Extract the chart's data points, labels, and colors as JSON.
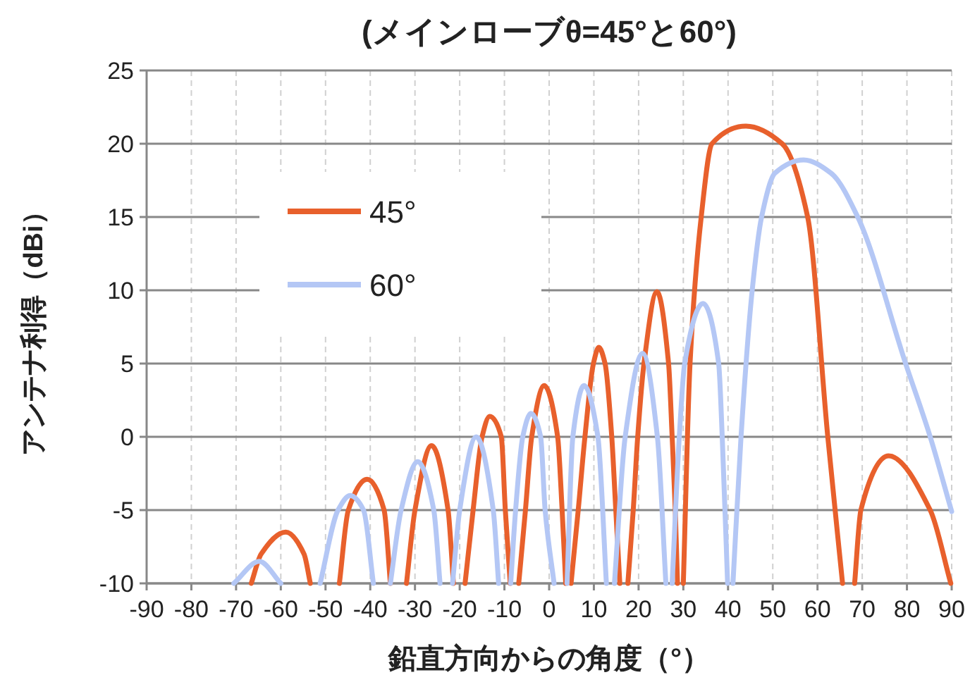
{
  "chart_data": {
    "type": "line",
    "title": "(メインローブθ=45°と60°)",
    "xlabel": "鉛直方向からの角度（°）",
    "ylabel": "アンテナ利得（dBi）",
    "xlim": [
      -90,
      90
    ],
    "xticks": [
      -90,
      -80,
      -70,
      -60,
      -50,
      -40,
      -30,
      -20,
      -10,
      0,
      10,
      20,
      30,
      40,
      50,
      60,
      70,
      80,
      90
    ],
    "ylim": [
      -10,
      25
    ],
    "yticks": [
      -10,
      -5,
      0,
      5,
      10,
      15,
      20,
      25
    ],
    "grid": true,
    "legend": "top left",
    "line_style": "solid",
    "marker": "none",
    "series": [
      {
        "name": "45°",
        "color": "#e8602c",
        "x": [
          -66.6,
          -64.4,
          -58.9,
          -54.8,
          -53.4,
          null,
          -46.9,
          -44.9,
          -40.7,
          -36.9,
          -35.5,
          null,
          -31.9,
          -30.0,
          -26.3,
          -22.6,
          -21.4,
          null,
          -18.8,
          -17.0,
          -15.0,
          -13.3,
          -10.7,
          -9.8,
          -8.7,
          null,
          -6.8,
          -5.3,
          -3.9,
          -1.1,
          1.9,
          2.9,
          3.7,
          null,
          4.9,
          6.5,
          8.0,
          9.9,
          11.1,
          12.5,
          14.0,
          14.9,
          15.8,
          null,
          17.6,
          18.8,
          19.8,
          21.2,
          24.1,
          26.7,
          27.5,
          28.2,
          28.7,
          null,
          30.0,
          31.5,
          34.0,
          36.4,
          44,
          52.1,
          57.8,
          62.3,
          65.6,
          null,
          68.3,
          69.7,
          75.9,
          85.2,
          89.8
        ],
        "values": [
          -10,
          -8,
          -6.5,
          -8,
          -10,
          null,
          -10,
          -5,
          -2.9,
          -5,
          -10,
          null,
          -10,
          -5,
          -0.6,
          -5,
          -10,
          null,
          -10,
          -5,
          0,
          1.4,
          0,
          -5,
          -10,
          null,
          -10,
          -5,
          0,
          3.5,
          0,
          -5,
          -10,
          null,
          -10,
          -5,
          0,
          5,
          6.1,
          5,
          0,
          -5,
          -10,
          null,
          -10,
          -5,
          0,
          5,
          9.9,
          5,
          0,
          -5,
          -10,
          null,
          -10,
          5,
          15,
          20,
          21.2,
          20,
          15,
          0,
          -10,
          null,
          -10,
          -5,
          -1.3,
          -5,
          -10
        ]
      },
      {
        "name": "60°",
        "color": "#b4c7f5",
        "x": [
          -70.5,
          -64.8,
          -60.0,
          null,
          -51.2,
          -47.2,
          -44.5,
          -41.5,
          -39.3,
          null,
          -35.5,
          -33.1,
          -29.4,
          -25.8,
          -24.4,
          null,
          -21.6,
          -20.0,
          -16.3,
          -12.5,
          -11.3,
          null,
          -8.6,
          -7.5,
          -5.9,
          -4.1,
          -1.9,
          -0.9,
          1.1,
          null,
          4.0,
          5.3,
          7.8,
          10.9,
          12.8,
          null,
          14.6,
          17.0,
          20.9,
          24.2,
          26.1,
          null,
          27.5,
          29.1,
          30.3,
          34.4,
          37.9,
          38.7,
          39.9,
          null,
          41.1,
          42.9,
          45.4,
          47.5,
          50.5,
          56.9,
          63,
          69,
          79.7,
          85.2,
          90
        ],
        "values": [
          -10,
          -8.5,
          -10,
          null,
          -10,
          -5,
          -4.0,
          -5,
          -10,
          null,
          -10,
          -5,
          -1.7,
          -5,
          -10,
          null,
          -10,
          -5,
          0.0,
          -5,
          -10,
          null,
          -10,
          -5,
          0,
          1.6,
          0,
          -5,
          -10,
          null,
          -10,
          0,
          3.5,
          0,
          -10,
          null,
          -10,
          0,
          5.7,
          0,
          -10,
          null,
          -10,
          0,
          5,
          9.1,
          5,
          0,
          -10,
          null,
          -10,
          0,
          10,
          15,
          18,
          18.9,
          18,
          15,
          5,
          0,
          -5.1
        ]
      }
    ]
  }
}
